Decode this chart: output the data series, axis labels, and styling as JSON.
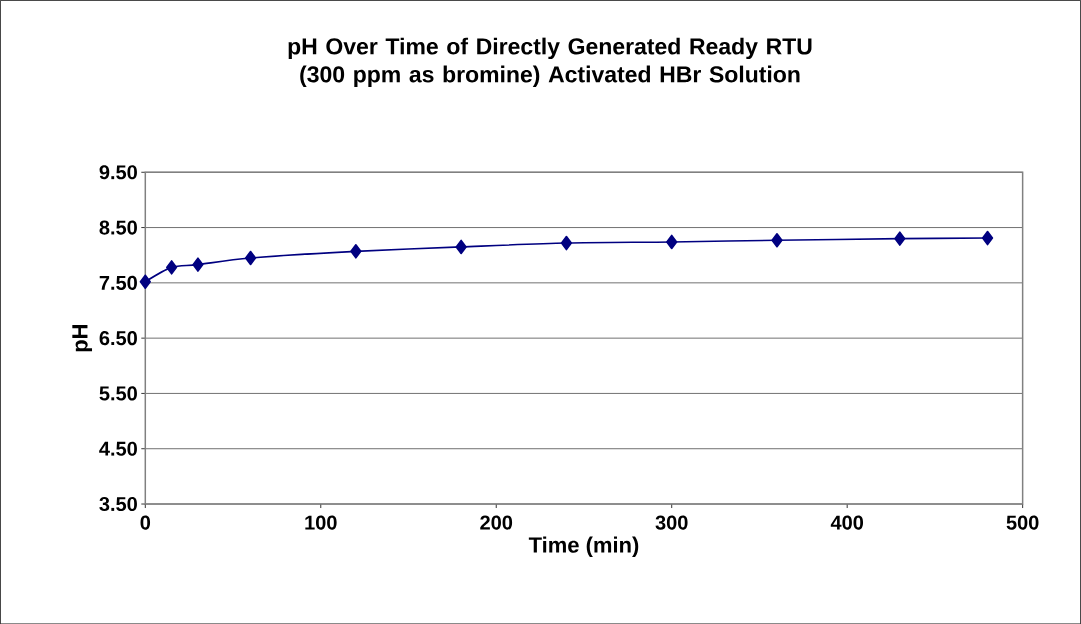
{
  "chart_data": {
    "type": "line",
    "title": "pH Over Time of Directly Generated Ready RTU (300 ppm as bromine) Activated HBr Solution",
    "xlabel": "Time (min)",
    "ylabel": "pH",
    "x": [
      0,
      15,
      30,
      60,
      120,
      180,
      240,
      300,
      360,
      430,
      480
    ],
    "series": [
      {
        "color": "#000080",
        "values": [
          7.52,
          7.78,
          7.83,
          7.95,
          8.07,
          8.15,
          8.22,
          8.24,
          8.27,
          8.3,
          8.31
        ]
      }
    ],
    "xlim": [
      0,
      500
    ],
    "xticks": [
      0,
      100,
      200,
      300,
      400,
      500
    ],
    "ylim": [
      3.5,
      9.5
    ],
    "yticks": [
      {
        "value": 3.5,
        "label": "3.50"
      },
      {
        "value": 4.5,
        "label": "4.50"
      },
      {
        "value": 5.5,
        "label": "5.50"
      },
      {
        "value": 6.5,
        "label": "6.50"
      },
      {
        "value": 7.5,
        "label": "7.50"
      },
      {
        "value": 8.5,
        "label": "8.50"
      },
      {
        "value": 9.5,
        "label": "9.50"
      }
    ],
    "grid": "y",
    "marker": "diamond",
    "line_style": "solid"
  }
}
